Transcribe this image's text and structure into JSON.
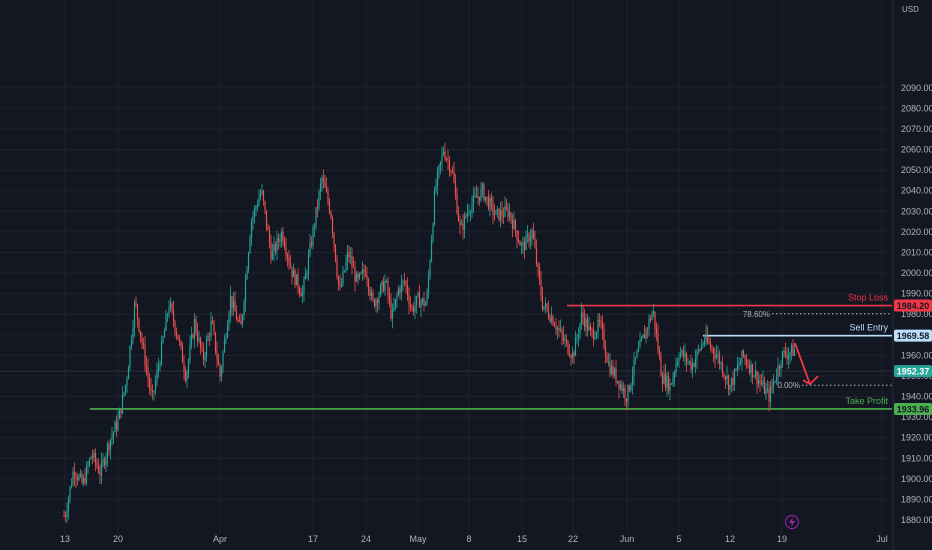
{
  "chart_data": {
    "type": "candlestick",
    "currency": "USD",
    "ylim": [
      1875,
      2100
    ],
    "y_ticks": [
      1880,
      1890,
      1900,
      1910,
      1920,
      1930,
      1940,
      1950,
      1960,
      1970,
      1980,
      1990,
      2000,
      2010,
      2020,
      2030,
      2040,
      2050,
      2060,
      2070,
      2080,
      2090
    ],
    "x_ticks": [
      "13",
      "20",
      "Apr",
      "17",
      "24",
      "May",
      "8",
      "15",
      "22",
      "Jun",
      "5",
      "12",
      "19",
      "Jul"
    ],
    "colors": {
      "up": "#26a69a",
      "down": "#ef5350",
      "background": "#131722",
      "grid": "#1e222d"
    },
    "levels": [
      {
        "name": "Stop Loss",
        "price": 1984.2,
        "badge": "1984.20",
        "color": "#f23645"
      },
      {
        "name": "Sell Entry",
        "price": 1969.58,
        "badge": "1969.58",
        "color": "#bbdefb"
      },
      {
        "name": "Take Profit",
        "price": 1933.96,
        "badge": "1933.96",
        "color": "#4caf50"
      }
    ],
    "current_price": {
      "price": 1952.37,
      "badge": "1952.37"
    },
    "fib_levels": [
      {
        "label": "78.60%",
        "price": 1980.2
      },
      {
        "label": "0.00%",
        "price": 1945.5
      }
    ],
    "price_path": [
      [
        "13",
        1882
      ],
      [
        "13",
        1905
      ],
      [
        "13",
        1897
      ],
      [
        "13",
        1912
      ],
      [
        "13",
        1903
      ],
      [
        "13",
        1918
      ],
      [
        "20",
        1928
      ],
      [
        "20",
        1948
      ],
      [
        "20",
        1986
      ],
      [
        "20",
        1962
      ],
      [
        "20",
        1938
      ],
      [
        "20",
        1960
      ],
      [
        "20",
        1985
      ],
      [
        "20",
        1970
      ],
      [
        "20",
        1950
      ],
      [
        "20",
        1976
      ],
      [
        "20",
        1958
      ],
      [
        "20",
        1976
      ],
      [
        "Apr",
        1950
      ],
      [
        "Apr",
        1988
      ],
      [
        "Apr",
        1972
      ],
      [
        "Apr",
        2025
      ],
      [
        "Apr",
        2040
      ],
      [
        "Apr",
        2008
      ],
      [
        "Apr",
        2020
      ],
      [
        "Apr",
        2000
      ],
      [
        "Apr",
        1990
      ],
      [
        "17",
        2020
      ],
      [
        "17",
        2046
      ],
      [
        "17",
        2030
      ],
      [
        "17",
        1990
      ],
      [
        "17",
        2010
      ],
      [
        "17",
        1995
      ],
      [
        "24",
        2002
      ],
      [
        "24",
        1985
      ],
      [
        "24",
        1990
      ],
      [
        "24",
        1996
      ],
      [
        "24",
        1978
      ],
      [
        "24",
        1992
      ],
      [
        "24",
        1996
      ],
      [
        "24",
        1982
      ],
      [
        "May",
        1987
      ],
      [
        "May",
        1985
      ],
      [
        "May",
        2040
      ],
      [
        "May",
        2060
      ],
      [
        "May",
        2050
      ],
      [
        "May",
        2020
      ],
      [
        "8",
        2032
      ],
      [
        "8",
        2040
      ],
      [
        "8",
        2028
      ],
      [
        "8",
        2030
      ],
      [
        "15",
        2012
      ],
      [
        "15",
        2020
      ],
      [
        "15",
        1985
      ],
      [
        "15",
        1978
      ],
      [
        "15",
        1968
      ],
      [
        "22",
        1960
      ],
      [
        "22",
        1980
      ],
      [
        "22",
        1970
      ],
      [
        "22",
        1975
      ],
      [
        "22",
        1955
      ],
      [
        "22",
        1948
      ],
      [
        "Jun",
        1940
      ],
      [
        "Jun",
        1958
      ],
      [
        "Jun",
        1970
      ],
      [
        "Jun",
        1982
      ],
      [
        "Jun",
        1950
      ],
      [
        "Jun",
        1945
      ],
      [
        "5",
        1962
      ],
      [
        "5",
        1955
      ],
      [
        "5",
        1968
      ],
      [
        "5",
        1960
      ],
      [
        "12",
        1945
      ],
      [
        "12",
        1960
      ],
      [
        "12",
        1950
      ],
      [
        "12",
        1940
      ],
      [
        "19",
        1960
      ],
      [
        "19",
        1964
      ],
      [
        "19",
        1958
      ],
      [
        "19",
        1953
      ],
      [
        "19",
        1952
      ]
    ],
    "projection": {
      "from_price": 1966,
      "to_price": 1946
    }
  }
}
